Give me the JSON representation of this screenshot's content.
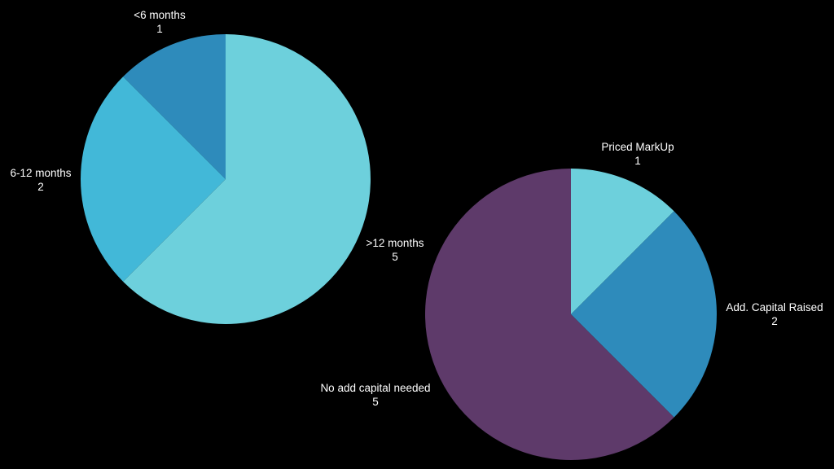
{
  "chart_data": [
    {
      "type": "pie",
      "slices": [
        {
          "label": "<6 months",
          "value": 1,
          "color": "#2e8bbb"
        },
        {
          "label": "6-12 months",
          "value": 2,
          "color": "#42b8d8"
        },
        {
          "label": ">12 months",
          "value": 5,
          "color": "#6dd0dc"
        }
      ],
      "start": "12 o'clock",
      "direction": "counterclockwise"
    },
    {
      "type": "pie",
      "slices": [
        {
          "label": "Priced MarkUp",
          "value": 1,
          "color": "#6dd0dc"
        },
        {
          "label": "Add. Capital Raised",
          "value": 2,
          "color": "#2e8bbb"
        },
        {
          "label": "No add capital needed",
          "value": 5,
          "color": "#5e3a6a"
        }
      ],
      "start": "12 o'clock",
      "direction": "clockwise"
    }
  ],
  "background": "#000000"
}
